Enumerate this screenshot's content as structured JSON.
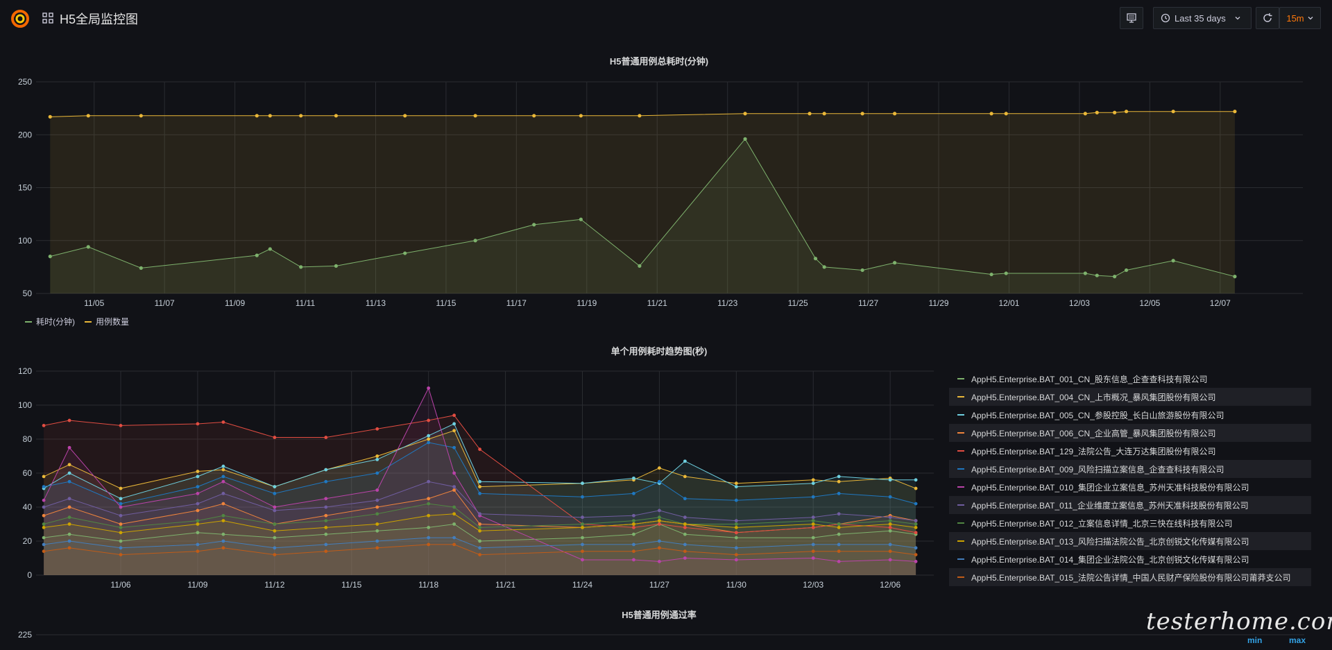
{
  "header": {
    "title": "H5全局监控图",
    "time_range": "Last 35 days",
    "refresh_interval": "15m"
  },
  "panel1": {
    "chart_data": {
      "type": "line",
      "title": "H5普通用例总耗时(分钟)",
      "x_ticks": [
        "11/05",
        "11/07",
        "11/09",
        "11/11",
        "11/13",
        "11/15",
        "11/17",
        "11/19",
        "11/21",
        "11/23",
        "11/25",
        "11/27",
        "11/29",
        "12/01",
        "12/03",
        "12/05",
        "12/07"
      ],
      "ylim": [
        50,
        250
      ],
      "y_ticks": [
        50,
        100,
        150,
        200,
        250
      ],
      "series": [
        {
          "name": "耗时(分钟)",
          "color": "#7eb26d",
          "points": [
            [
              "11/03 18:00",
              85
            ],
            [
              "11/04 20:00",
              94
            ],
            [
              "11/06 08:00",
              74
            ],
            [
              "11/09 15:00",
              86
            ],
            [
              "11/10 00:00",
              92
            ],
            [
              "11/10 21:00",
              75
            ],
            [
              "11/11 21:00",
              76
            ],
            [
              "11/13 20:00",
              88
            ],
            [
              "11/15 20:00",
              100
            ],
            [
              "11/17 12:00",
              115
            ],
            [
              "11/18 20:00",
              120
            ],
            [
              "11/20 12:00",
              76
            ],
            [
              "11/23 12:00",
              196
            ],
            [
              "11/25 12:00",
              83
            ],
            [
              "11/25 18:00",
              75
            ],
            [
              "11/26 20:00",
              72
            ],
            [
              "11/27 18:00",
              79
            ],
            [
              "11/30 12:00",
              68
            ],
            [
              "11/30 22:00",
              69
            ],
            [
              "12/03 04:00",
              69
            ],
            [
              "12/03 12:00",
              67
            ],
            [
              "12/04 00:00",
              66
            ],
            [
              "12/04 08:00",
              72
            ],
            [
              "12/05 16:00",
              81
            ],
            [
              "12/07 10:00",
              66
            ]
          ]
        },
        {
          "name": "用例数量",
          "color": "#eab839",
          "points": [
            [
              "11/03 18:00",
              217
            ],
            [
              "11/04 20:00",
              218
            ],
            [
              "11/06 08:00",
              218
            ],
            [
              "11/09 15:00",
              218
            ],
            [
              "11/10 00:00",
              218
            ],
            [
              "11/10 21:00",
              218
            ],
            [
              "11/11 21:00",
              218
            ],
            [
              "11/13 20:00",
              218
            ],
            [
              "11/15 20:00",
              218
            ],
            [
              "11/17 12:00",
              218
            ],
            [
              "11/18 20:00",
              218
            ],
            [
              "11/20 12:00",
              218
            ],
            [
              "11/23 12:00",
              220
            ],
            [
              "11/25 08:00",
              220
            ],
            [
              "11/25 18:00",
              220
            ],
            [
              "11/26 20:00",
              220
            ],
            [
              "11/27 18:00",
              220
            ],
            [
              "11/30 12:00",
              220
            ],
            [
              "11/30 22:00",
              220
            ],
            [
              "12/03 04:00",
              220
            ],
            [
              "12/03 12:00",
              221
            ],
            [
              "12/04 00:00",
              221
            ],
            [
              "12/04 08:00",
              222
            ],
            [
              "12/05 16:00",
              222
            ],
            [
              "12/07 10:00",
              222
            ]
          ]
        }
      ]
    }
  },
  "panel2": {
    "chart_data": {
      "type": "line",
      "title": "单个用例耗时趋势图(秒)",
      "x_ticks": [
        "11/06",
        "11/09",
        "11/12",
        "11/15",
        "11/18",
        "11/21",
        "11/24",
        "11/27",
        "11/30",
        "12/03",
        "12/06"
      ],
      "ylim": [
        0,
        120
      ],
      "y_ticks": [
        0,
        20,
        40,
        60,
        80,
        100,
        120
      ],
      "x_dates": [
        "11/03",
        "11/04",
        "11/06",
        "11/09",
        "11/10",
        "11/12",
        "11/14",
        "11/16",
        "11/18",
        "11/19",
        "11/20",
        "11/24",
        "11/26",
        "11/27",
        "11/28",
        "11/30",
        "12/03",
        "12/04",
        "12/06",
        "12/07"
      ],
      "series": [
        {
          "name": "AppH5.Enterprise.BAT_001_CN_股东信息_企查查科技有限公司",
          "color": "#7eb26d",
          "values": [
            22,
            24,
            20,
            25,
            24,
            22,
            24,
            26,
            28,
            30,
            20,
            22,
            24,
            30,
            24,
            22,
            22,
            24,
            26,
            24
          ]
        },
        {
          "name": "AppH5.Enterprise.BAT_004_CN_上市概况_暴风集团股份有限公司",
          "color": "#eab839",
          "values": [
            58,
            65,
            51,
            61,
            62,
            52,
            62,
            70,
            80,
            85,
            52,
            54,
            56,
            63,
            58,
            54,
            56,
            55,
            57,
            51
          ]
        },
        {
          "name": "AppH5.Enterprise.BAT_005_CN_参股控股_长白山旅游股份有限公司",
          "color": "#6ed0e0",
          "values": [
            51,
            60,
            45,
            58,
            64,
            52,
            62,
            68,
            82,
            89,
            55,
            54,
            57,
            54,
            67,
            52,
            54,
            58,
            56,
            56
          ]
        },
        {
          "name": "AppH5.Enterprise.BAT_006_CN_企业高管_暴风集团股份有限公司",
          "color": "#ef843c",
          "values": [
            35,
            40,
            30,
            38,
            42,
            30,
            35,
            40,
            45,
            50,
            30,
            28,
            30,
            32,
            30,
            25,
            28,
            30,
            35,
            32
          ]
        },
        {
          "name": "AppH5.Enterprise.BAT_129_法院公告_大连万达集团股份有限公司",
          "color": "#e24d42",
          "values": [
            88,
            91,
            88,
            89,
            90,
            81,
            81,
            86,
            91,
            94,
            74,
            30,
            28,
            30,
            28,
            25,
            28,
            30,
            28,
            25
          ]
        },
        {
          "name": "AppH5.Enterprise.BAT_009_风险扫描立案信息_企查查科技有限公司",
          "color": "#1f78c1",
          "values": [
            52,
            55,
            42,
            52,
            58,
            48,
            55,
            60,
            78,
            75,
            48,
            46,
            48,
            55,
            45,
            44,
            46,
            48,
            46,
            42
          ]
        },
        {
          "name": "AppH5.Enterprise.BAT_010_集团企业立案信息_苏州天准科技股份有限公司",
          "color": "#ba43a9",
          "values": [
            44,
            75,
            40,
            48,
            55,
            40,
            45,
            50,
            110,
            60,
            35,
            9,
            9,
            8,
            10,
            9,
            10,
            8,
            9,
            8
          ]
        },
        {
          "name": "AppH5.Enterprise.BAT_011_企业维度立案信息_苏州天准科技股份有限公司",
          "color": "#705da0",
          "values": [
            40,
            45,
            35,
            42,
            48,
            38,
            40,
            44,
            55,
            52,
            36,
            34,
            35,
            38,
            34,
            32,
            34,
            36,
            34,
            32
          ]
        },
        {
          "name": "AppH5.Enterprise.BAT_012_立案信息详情_北京三快在线科技有限公司",
          "color": "#508642",
          "values": [
            30,
            34,
            28,
            32,
            35,
            30,
            32,
            36,
            42,
            40,
            28,
            30,
            32,
            34,
            30,
            30,
            32,
            30,
            32,
            30
          ]
        },
        {
          "name": "AppH5.Enterprise.BAT_013_风险扫描法院公告_北京创锐文化传媒有限公司",
          "color": "#cca300",
          "values": [
            28,
            30,
            25,
            30,
            32,
            26,
            28,
            30,
            35,
            36,
            26,
            28,
            30,
            32,
            30,
            28,
            30,
            28,
            30,
            28
          ]
        },
        {
          "name": "AppH5.Enterprise.BAT_014_集团企业法院公告_北京创锐文化传媒有限公司",
          "color": "#447ebc",
          "values": [
            18,
            20,
            16,
            18,
            20,
            16,
            18,
            20,
            22,
            22,
            16,
            18,
            18,
            20,
            18,
            16,
            18,
            18,
            18,
            16
          ]
        },
        {
          "name": "AppH5.Enterprise.BAT_015_法院公告详情_中国人民财产保险股份有限公司莆莽支公司",
          "color": "#c15c17",
          "values": [
            14,
            16,
            12,
            14,
            16,
            12,
            14,
            16,
            18,
            18,
            12,
            14,
            14,
            16,
            14,
            12,
            14,
            14,
            14,
            12
          ]
        }
      ]
    }
  },
  "panel3": {
    "title": "H5普通用例通过率",
    "y_ticks": [
      225
    ]
  },
  "legend_headers": {
    "min": "min",
    "max": "max"
  },
  "watermark": "testerhome.com"
}
